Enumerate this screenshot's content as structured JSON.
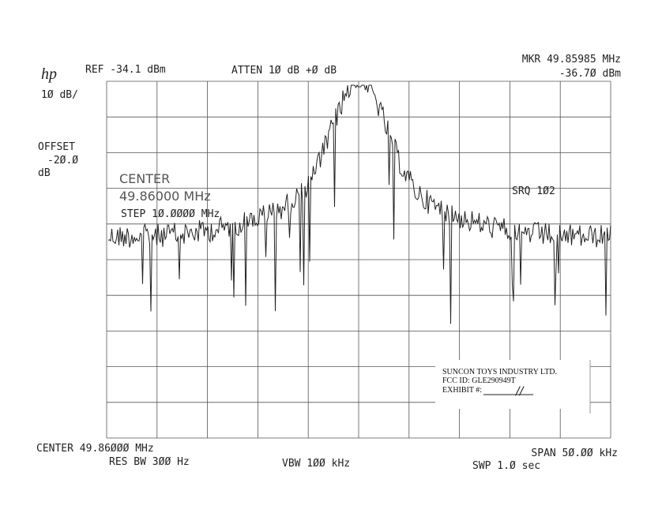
{
  "header": {
    "logo": "hp",
    "ref": "REF -34.1 dBm",
    "atten": "ATTEN 1Ø dB +Ø dB",
    "marker_freq": "MKR 49.85985 MHz",
    "marker_level": "-36.7Ø dBm"
  },
  "left_panel": {
    "scale": "1Ø dB/",
    "offset_label": "OFFSET",
    "offset_value": "-2Ø.Ø",
    "offset_unit": "dB"
  },
  "overlay": {
    "center_label": "CENTER",
    "center_value": "49.86000 MHz",
    "step": "STEP 1Ø.ØØØØ MHz",
    "srq": "SRQ 1Ø2"
  },
  "footer": {
    "center": "CENTER 49.86ØØØ MHz",
    "res_bw": "RES BW 3ØØ Hz",
    "vbw": "VBW 1ØØ kHz",
    "span": "SPAN 5Ø.ØØ kHz",
    "sweep": "SWP 1.Ø  sec"
  },
  "label": {
    "company": "SUNCON TOYS INDUSTRY LTD.",
    "fcc_id": "FCC ID:  GLE290949T",
    "exhibit": "EXHIBIT #:",
    "exhibit_value": "//"
  }
}
